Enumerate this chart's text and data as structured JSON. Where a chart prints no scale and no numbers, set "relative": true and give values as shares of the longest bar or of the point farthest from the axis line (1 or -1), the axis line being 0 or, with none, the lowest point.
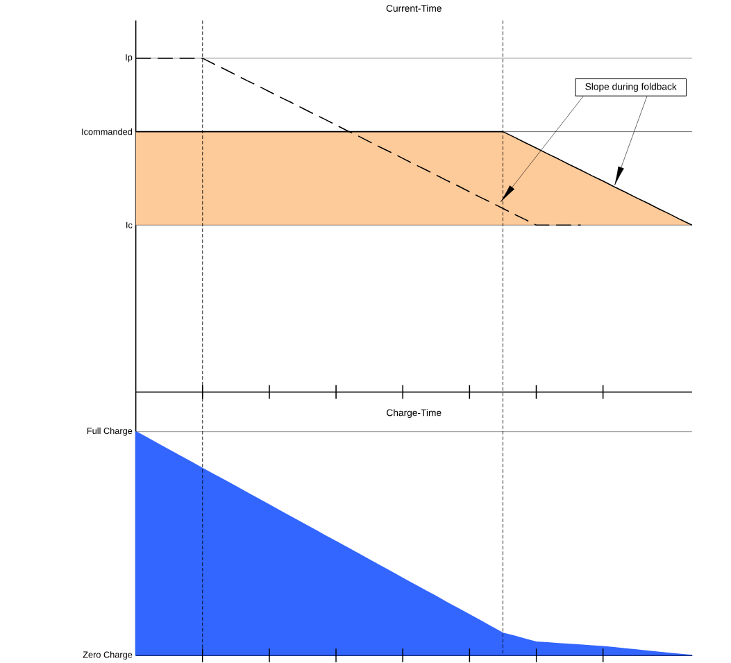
{
  "chart_data": [
    {
      "type": "line",
      "title": "Current-Time",
      "relative": true,
      "categories": [
        null,
        null,
        null,
        null,
        null,
        null,
        null,
        null,
        null,
        null,
        null,
        null,
        null,
        null,
        null,
        null,
        null,
        null,
        null,
        null,
        null,
        null,
        null,
        null,
        null,
        null,
        null,
        null,
        null,
        null,
        null,
        null,
        null,
        null,
        null,
        null,
        null,
        null,
        null,
        null,
        null,
        null,
        null,
        null,
        null,
        null,
        null,
        null,
        null,
        null,
        null
      ],
      "series": [
        {
          "type": "line",
          "color": "#000000",
          "values": [
            0.78,
            0.78,
            0.78,
            0.78,
            0.78,
            0.78,
            0.78,
            0.78,
            0.78,
            0.78,
            0.78,
            0.78,
            0.78,
            0.78,
            0.78,
            0.78,
            0.78,
            0.78,
            0.78,
            0.78,
            0.78,
            0.78,
            0.78,
            0.78,
            0.78,
            0.78,
            0.78,
            0.78,
            0.78,
            0.78,
            0.78,
            0.78,
            0.78,
            0.78,
            0.764,
            0.747,
            0.731,
            0.714,
            0.698,
            0.681,
            0.665,
            0.648,
            0.632,
            0.615,
            0.599,
            0.582,
            0.566,
            0.549,
            0.533,
            0.516,
            0.5
          ],
          "lower": [
            0.5,
            0.5,
            0.5,
            0.5,
            0.5,
            0.5,
            0.5,
            0.5,
            0.5,
            0.5,
            0.5,
            0.5,
            0.5,
            0.5,
            0.5,
            0.5,
            0.5,
            0.5,
            0.5,
            0.5,
            0.5,
            0.5,
            0.5,
            0.5,
            0.5,
            0.5,
            0.5,
            0.5,
            0.5,
            0.5,
            0.5,
            0.5,
            0.5,
            0.5,
            0.5,
            0.5,
            0.5,
            0.5,
            0.5,
            0.5,
            0.5,
            0.5,
            0.5,
            0.5,
            0.5,
            0.5,
            0.5,
            0.5,
            0.5,
            0.5,
            0.5
          ],
          "upper": [
            0.78,
            0.78,
            0.78,
            0.78,
            0.78,
            0.78,
            0.78,
            0.78,
            0.78,
            0.78,
            0.78,
            0.78,
            0.78,
            0.78,
            0.78,
            0.78,
            0.78,
            0.78,
            0.78,
            0.78,
            0.78,
            0.78,
            0.78,
            0.78,
            0.78,
            0.78,
            0.78,
            0.78,
            0.78,
            0.78,
            0.78,
            0.78,
            0.78,
            0.78,
            0.764,
            0.747,
            0.731,
            0.714,
            0.698,
            0.681,
            0.665,
            0.648,
            0.632,
            0.615,
            0.599,
            0.582,
            0.566,
            0.549,
            0.533,
            0.516,
            0.5
          ]
        },
        {
          "type": "line",
          "color": "#000000",
          "line_style": "dashed",
          "values": [
            1,
            1,
            1,
            1,
            1,
            1,
            1,
            0.983,
            0.967,
            0.95,
            0.933,
            0.917,
            0.9,
            0.883,
            0.867,
            0.85,
            0.833,
            0.817,
            0.8,
            0.783,
            0.767,
            0.75,
            0.733,
            0.717,
            0.7,
            0.683,
            0.667,
            0.65,
            0.633,
            0.617,
            0.6,
            0.583,
            0.567,
            0.55,
            0.533,
            0.517,
            0.5,
            0.5,
            0.5,
            0.5,
            0.5,
            null,
            null,
            null,
            null,
            null,
            null,
            null,
            null,
            null,
            null
          ]
        }
      ],
      "tick_labels": false,
      "ref_lines": [
        {
          "axis": "y",
          "value": 1,
          "label": "Ip",
          "color": "#404040"
        },
        {
          "axis": "y",
          "value": 0.78,
          "label": "Icommanded",
          "color": "#000000"
        },
        {
          "axis": "y",
          "value": 0.5,
          "label": "Ic",
          "color": "#404040"
        }
      ],
      "annotations": [
        "Slope during foldback"
      ]
    },
    {
      "type": "area",
      "title": "Charge-Time",
      "relative": true,
      "categories": [
        null,
        null,
        null,
        null,
        null,
        null,
        null,
        null,
        null,
        null,
        null,
        null,
        null,
        null,
        null,
        null,
        null,
        null,
        null,
        null,
        null,
        null,
        null,
        null,
        null,
        null,
        null,
        null,
        null,
        null,
        null,
        null,
        null,
        null,
        null,
        null,
        null,
        null,
        null,
        null,
        null,
        null,
        null,
        null,
        null,
        null,
        null,
        null,
        null,
        null,
        null
      ],
      "series": [
        {
          "color": "#3366ff",
          "values": [
            1,
            0.973,
            0.945,
            0.918,
            0.891,
            0.864,
            0.836,
            0.809,
            0.782,
            0.755,
            0.727,
            0.7,
            0.673,
            0.645,
            0.618,
            0.591,
            0.564,
            0.536,
            0.509,
            0.482,
            0.455,
            0.427,
            0.4,
            0.373,
            0.345,
            0.318,
            0.291,
            0.264,
            0.236,
            0.209,
            0.182,
            0.155,
            0.127,
            0.1,
            0.087,
            0.073,
            0.06,
            0.057,
            0.053,
            0.05,
            0.047,
            0.043,
            0.04,
            0.035,
            0.03,
            0.025,
            0.02,
            0.015,
            0.01,
            0.005,
            0
          ]
        }
      ],
      "tick_labels": false,
      "ref_lines": [
        {
          "axis": "y",
          "value": 1,
          "label": "Full Charge",
          "color": "#404040"
        },
        {
          "axis": "y",
          "value": 0,
          "label": "Zero Charge",
          "color": "#000000"
        }
      ]
    }
  ]
}
